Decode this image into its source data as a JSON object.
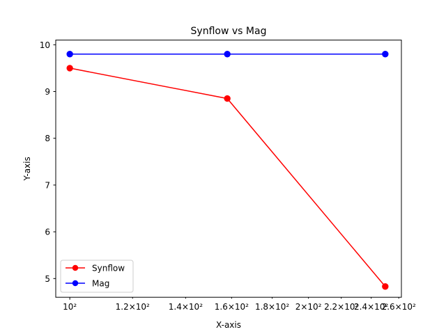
{
  "chart_data": {
    "type": "line",
    "title": "Synflow vs Mag",
    "xlabel": "X-axis",
    "ylabel": "Y-axis",
    "x_scale": "log",
    "x": [
      100,
      158,
      250
    ],
    "xlim": [
      96,
      262
    ],
    "ylim": [
      4.6,
      10.1
    ],
    "x_tick_labels": [
      "10²",
      "1.2×10²",
      "1.4×10²",
      "1.6×10²",
      "1.8×10²",
      "2×10²",
      "2.2×10²",
      "2.4×10²",
      "2.6×10²"
    ],
    "x_tick_values": [
      100,
      120,
      140,
      160,
      180,
      200,
      220,
      240,
      260
    ],
    "y_tick_labels": [
      "5",
      "6",
      "7",
      "8",
      "9",
      "10"
    ],
    "y_tick_values": [
      5,
      6,
      7,
      8,
      9,
      10
    ],
    "series": [
      {
        "name": "Synflow",
        "color": "#ff0000",
        "marker": "circle",
        "values": [
          9.5,
          8.85,
          4.83
        ]
      },
      {
        "name": "Mag",
        "color": "#0000ff",
        "marker": "circle",
        "values": [
          9.8,
          9.8,
          9.8
        ]
      }
    ],
    "legend": {
      "placement": "lower-left",
      "entries": [
        "Synflow",
        "Mag"
      ]
    },
    "grid": false
  }
}
